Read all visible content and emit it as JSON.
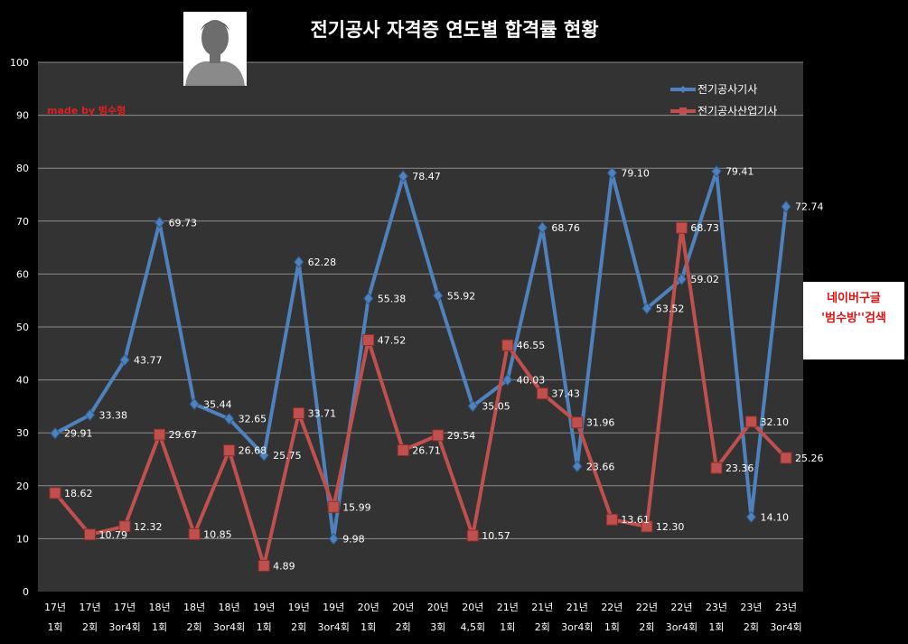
{
  "chart_data": {
    "type": "line",
    "title": "전기공사 자격증 연도별 합격률 현황",
    "ylim": [
      0,
      100
    ],
    "yticks": [
      0,
      10,
      20,
      30,
      40,
      50,
      60,
      70,
      80,
      90,
      100
    ],
    "grid": true,
    "legend_position": "top-right",
    "categories": [
      [
        "17년",
        "1회"
      ],
      [
        "17년",
        "2회"
      ],
      [
        "17년",
        "3or4회"
      ],
      [
        "18년",
        "1회"
      ],
      [
        "18년",
        "2회"
      ],
      [
        "18년",
        "3or4회"
      ],
      [
        "19년",
        "1회"
      ],
      [
        "19년",
        "2회"
      ],
      [
        "19년",
        "3or4회"
      ],
      [
        "20년",
        "1회"
      ],
      [
        "20년",
        "2회"
      ],
      [
        "20년",
        "3회"
      ],
      [
        "20년",
        "4,5회"
      ],
      [
        "21년",
        "1회"
      ],
      [
        "21년",
        "2회"
      ],
      [
        "21년",
        "3or4회"
      ],
      [
        "22년",
        "1회"
      ],
      [
        "22년",
        "2회"
      ],
      [
        "22년",
        "3or4회"
      ],
      [
        "23년",
        "1회"
      ],
      [
        "23년",
        "2회"
      ],
      [
        "23년",
        "3or4회"
      ]
    ],
    "series": [
      {
        "name": "전기공사기사",
        "color": "#4f81bd",
        "marker": "diamond",
        "values": [
          29.91,
          33.38,
          43.77,
          69.73,
          35.44,
          32.65,
          25.75,
          62.28,
          9.98,
          55.38,
          78.47,
          55.92,
          35.05,
          40.03,
          68.76,
          23.66,
          79.1,
          53.52,
          59.02,
          79.41,
          14.1,
          72.74
        ],
        "labels": [
          "29.91",
          "33.38",
          "43.77",
          "69.73",
          "35.44",
          "32.65",
          "25.75",
          "62.28",
          "9.98",
          "55.38",
          "78.47",
          "55.92",
          "35.05",
          "40.03",
          "68.76",
          "23.66",
          "79.10",
          "53.52",
          "59.02",
          "79.41",
          "14.10",
          "72.74"
        ]
      },
      {
        "name": "전기공사산업기사",
        "color": "#c0504d",
        "marker": "square",
        "values": [
          18.62,
          10.79,
          12.32,
          29.67,
          10.85,
          26.68,
          4.89,
          33.71,
          15.99,
          47.52,
          26.71,
          29.54,
          10.57,
          46.55,
          37.43,
          31.96,
          13.61,
          12.3,
          68.73,
          23.36,
          32.1,
          25.26
        ],
        "labels": [
          "18.62",
          "10.79",
          "12.32",
          "29.67",
          "10.85",
          "26.68",
          "4.89",
          "33.71",
          "15.99",
          "47.52",
          "26.71",
          "29.54",
          "10.57",
          "46.55",
          "37.43",
          "31.96",
          "13.61",
          "12.30",
          "68.73",
          "23.36",
          "32.10",
          "25.26"
        ]
      }
    ]
  },
  "annotations": {
    "made_by": "made by  범수형",
    "sidebox_line1": "네이버구글",
    "sidebox_line2": "'범수방''검색"
  },
  "icons": [
    "user-avatar-icon"
  ],
  "colors": {
    "background": "#000000",
    "plot_area": "#333333",
    "gridline": "#8c8c8c"
  }
}
